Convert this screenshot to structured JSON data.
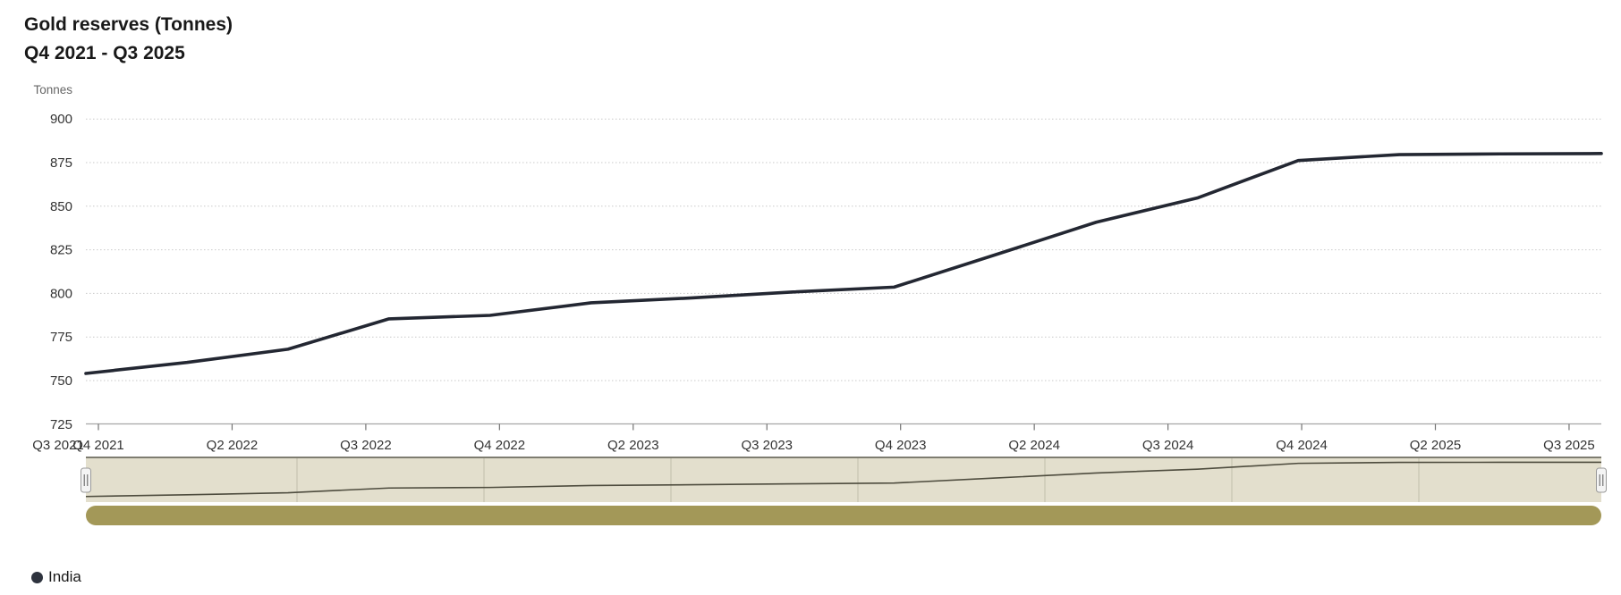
{
  "header": {
    "title": "Gold reserves (Tonnes)",
    "subtitle": "Q4 2021 - Q3 2025"
  },
  "chart_data": {
    "type": "line",
    "title": "Gold reserves (Tonnes)",
    "subtitle": "Q4 2021 - Q3 2025",
    "ylabel": "Tonnes",
    "ylim": [
      725,
      900
    ],
    "yticks": [
      900,
      875,
      850,
      825,
      800,
      775,
      750,
      725
    ],
    "grid": "dotted horizontal gridlines",
    "legend_position": "bottom-left",
    "x": [
      "Q4 2021",
      "Q1 2022",
      "Q2 2022",
      "Q3 2022",
      "Q4 2022",
      "Q1 2023",
      "Q2 2023",
      "Q3 2023",
      "Q4 2023",
      "Q1 2024",
      "Q2 2024",
      "Q3 2024",
      "Q4 2024",
      "Q1 2025",
      "Q2 2025",
      "Q3 2025"
    ],
    "series": [
      {
        "name": "India",
        "values": [
          754.1,
          760.4,
          768.0,
          785.4,
          787.4,
          794.6,
          797.4,
          800.8,
          803.6,
          822.1,
          840.8,
          854.7,
          876.2,
          879.6,
          880.0,
          880.2
        ]
      }
    ],
    "xtick_labels": [
      "Q4 2021",
      "Q2 2022",
      "Q3 2022",
      "Q4 2022",
      "Q2 2023",
      "Q3 2023",
      "Q4 2023",
      "Q2 2024",
      "Q3 2024",
      "Q4 2024",
      "Q2 2025",
      "Q3 2025"
    ],
    "x_edge_overlap_label": "Q3 2021",
    "colors": {
      "series": "#232732",
      "grid": "#c9c9c9",
      "axis_line": "#a6a6a6",
      "tick": "#737373",
      "axis_label": "#333333",
      "ylabel_text": "#666666",
      "navigator_fill": "#e3dfcd",
      "navigator_outline": "#6e6d60",
      "navigator_gridline": "#c8c4b1",
      "navigator_series": "#4e4c3e",
      "handle_fill": "#f4f4f4",
      "handle_border": "#999999",
      "scrollbar": "#a39858"
    }
  },
  "legend": {
    "items": [
      {
        "label": "India",
        "color": "#2e333e"
      }
    ]
  }
}
